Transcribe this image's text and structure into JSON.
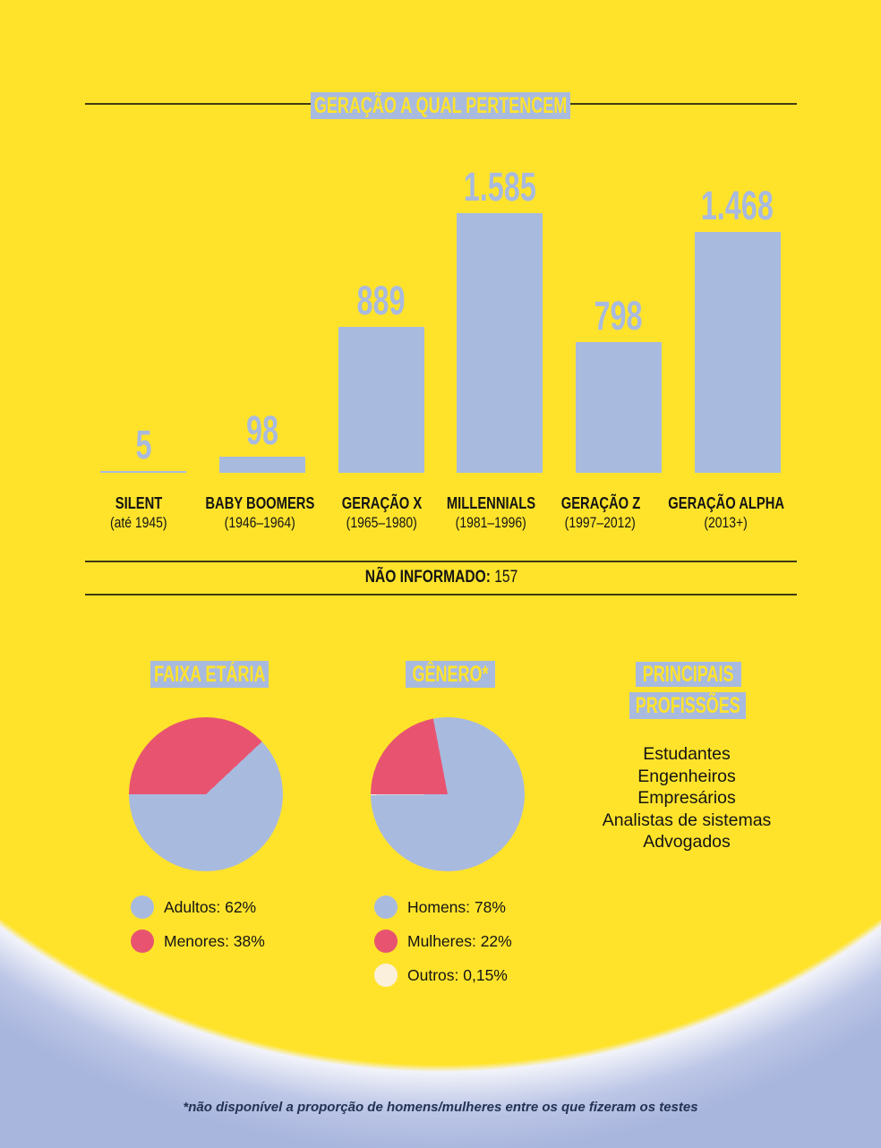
{
  "colors": {
    "yellow": "#ffe32b",
    "blue": "#a9badf",
    "pink": "#e85470",
    "cream": "#faf0dc",
    "background_blue": "#a8b5dd",
    "line_dark": "#3f3b12",
    "text_dark": "#141414",
    "footer_navy": "#233253"
  },
  "chart_data": [
    {
      "type": "bar",
      "title": "GERAÇÃO A QUAL PERTENCEM",
      "categories": [
        "SILENT",
        "BABY BOOMERS",
        "GERAÇÃO X",
        "MILLENNIALS",
        "GERAÇÃO Z",
        "GERAÇÃO ALPHA"
      ],
      "category_periods": [
        "(até 1945)",
        "(1946–1964)",
        "(1965–1980)",
        "(1981–1996)",
        "(1997–2012)",
        "(2013+)"
      ],
      "values": [
        5,
        98,
        889,
        1585,
        798,
        1468
      ],
      "value_labels": [
        "5",
        "98",
        "889",
        "1.585",
        "798",
        "1.468"
      ],
      "ylim": [
        0,
        1585
      ],
      "bar_color": "#a9badf",
      "footnote_label": "NÃO INFORMADO:",
      "footnote_value": "157"
    },
    {
      "type": "pie",
      "title": "FAIXA ETÁRIA",
      "slices": [
        {
          "label": "Menores",
          "value": 38,
          "color": "#e85470"
        },
        {
          "label": "Adultos",
          "value": 62,
          "color": "#a9badf"
        }
      ],
      "start_angle_deg": 270,
      "legend": [
        {
          "label": "Adultos: 62%",
          "color": "#a9badf"
        },
        {
          "label": "Menores: 38%",
          "color": "#e85470"
        }
      ]
    },
    {
      "type": "pie",
      "title": "GÊNERO*",
      "slices": [
        {
          "label": "Mulheres",
          "value": 22,
          "color": "#e85470"
        },
        {
          "label": "Homens",
          "value": 77.85,
          "color": "#a9badf"
        },
        {
          "label": "Outros",
          "value": 0.15,
          "color": "#faf0dc"
        }
      ],
      "start_angle_deg": 270,
      "legend": [
        {
          "label": "Homens: 78%",
          "color": "#a9badf"
        },
        {
          "label": "Mulheres: 22%",
          "color": "#e85470"
        },
        {
          "label": "Outros: 0,15%",
          "color": "#faf0dc"
        }
      ]
    }
  ],
  "professions": {
    "title_line1": "PRINCIPAIS",
    "title_line2": "PROFISSÕES",
    "items": [
      "Estudantes",
      "Engenheiros",
      "Empresários",
      "Analistas de sistemas",
      "Advogados"
    ]
  },
  "footer": {
    "note": "*não disponível a proporção de homens/mulheres entre os que fizeram os testes"
  }
}
